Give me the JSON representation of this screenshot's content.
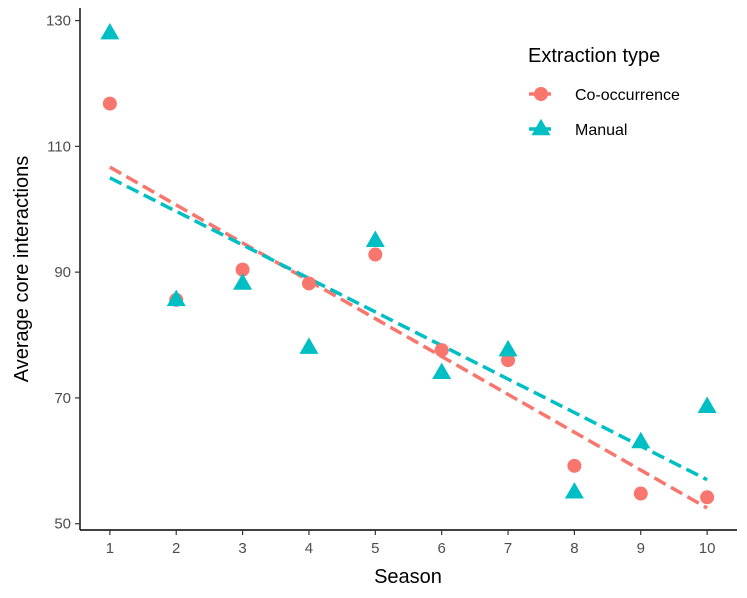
{
  "chart_data": {
    "type": "scatter",
    "title": "",
    "xlabel": "Season",
    "ylabel": "Average core interactions",
    "xlim": [
      0.55,
      10.45
    ],
    "ylim": [
      49,
      132
    ],
    "x_ticks": [
      1,
      2,
      3,
      4,
      5,
      6,
      7,
      8,
      9,
      10
    ],
    "y_ticks": [
      50,
      70,
      90,
      110,
      130
    ],
    "grid": false,
    "legend_title": "Extraction type",
    "legend_position": "top-right",
    "series": [
      {
        "name": "Co-occurrence",
        "marker": "circle",
        "color": "#F8766D",
        "x": [
          1,
          2,
          3,
          4,
          5,
          6,
          7,
          8,
          9,
          10
        ],
        "y": [
          116.8,
          85.6,
          90.4,
          88.2,
          92.8,
          77.6,
          76.0,
          59.2,
          54.8,
          54.2
        ],
        "trend": {
          "x": [
            1,
            10
          ],
          "y": [
            106.7,
            52.5
          ]
        }
      },
      {
        "name": "Manual",
        "marker": "triangle",
        "color": "#00BFC4",
        "x": [
          1,
          2,
          3,
          4,
          5,
          6,
          7,
          8,
          9,
          10
        ],
        "y": [
          128.0,
          85.6,
          88.2,
          78.0,
          95.0,
          74.0,
          77.6,
          55.0,
          63.0,
          68.6
        ],
        "trend": {
          "x": [
            1,
            10
          ],
          "y": [
            105.0,
            57.0
          ]
        }
      }
    ]
  }
}
